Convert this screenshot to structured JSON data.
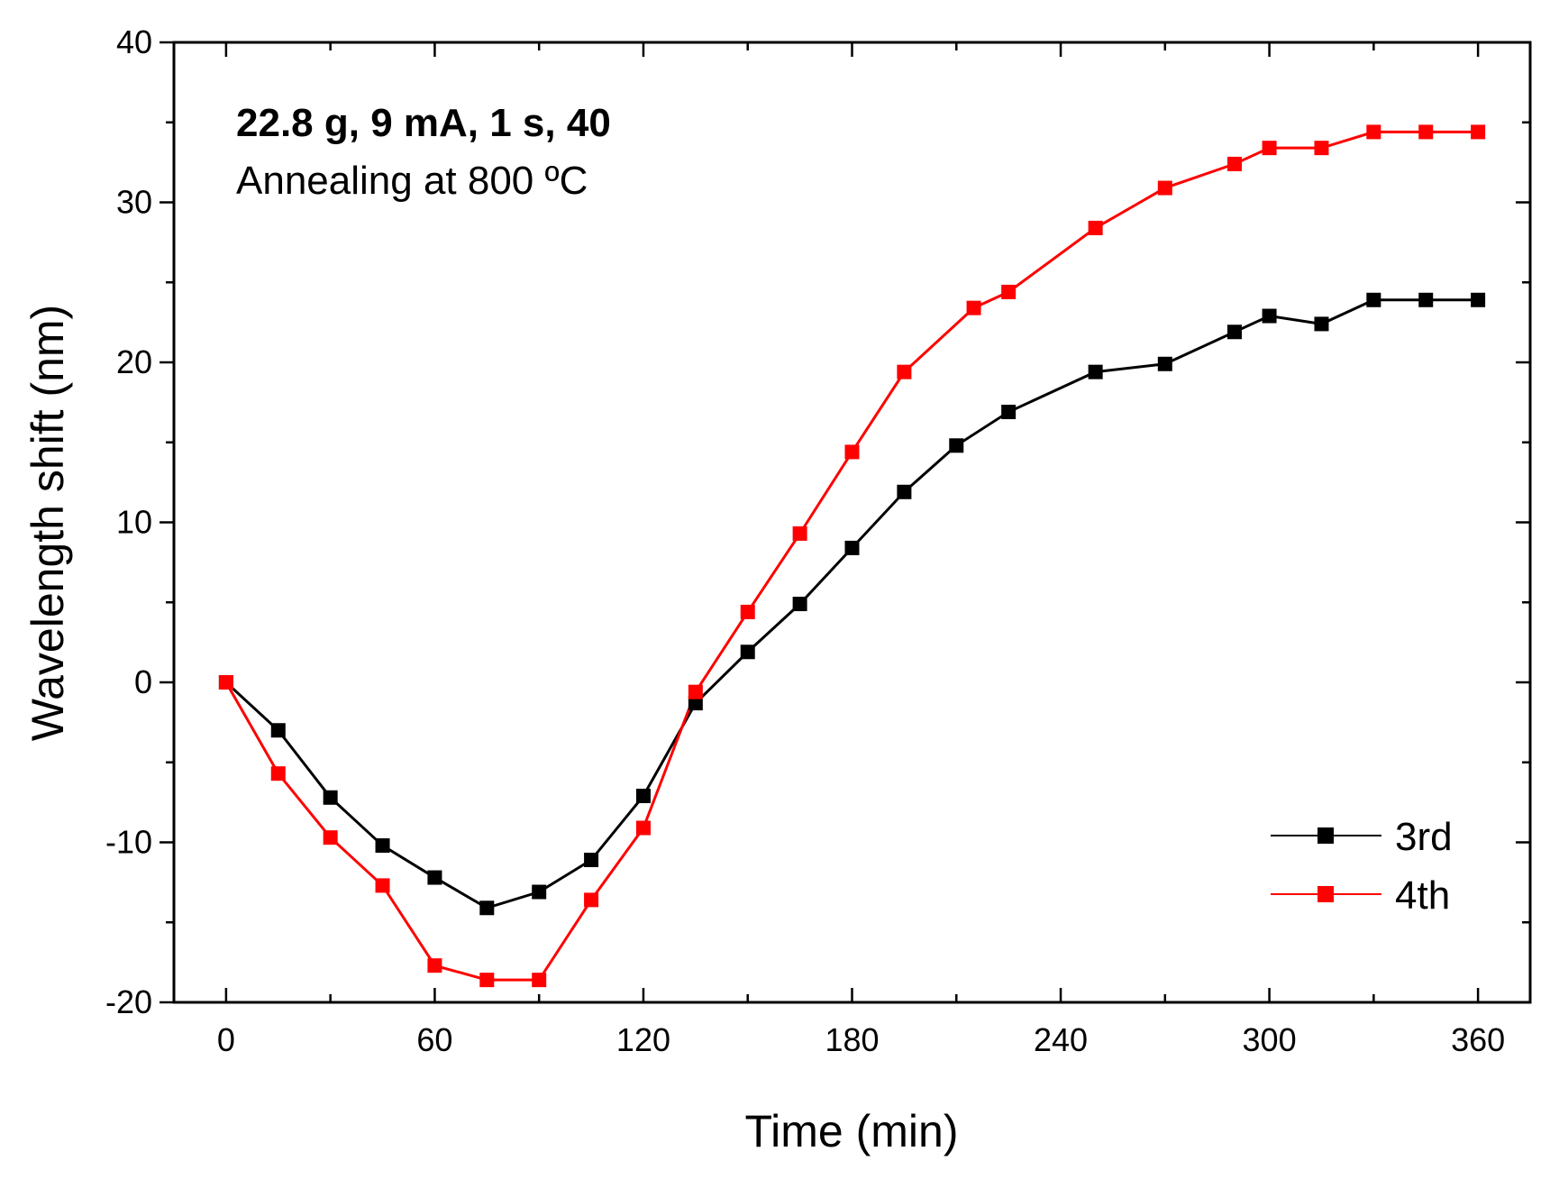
{
  "chart_data": {
    "type": "line",
    "title": "",
    "xlabel": "Time (min)",
    "ylabel": "Wavelength shift (nm)",
    "xlim": [
      -15,
      375
    ],
    "ylim": [
      -20,
      40
    ],
    "xticks": [
      0,
      60,
      120,
      180,
      240,
      300,
      360
    ],
    "xtick_labels": [
      "0",
      "60",
      "120",
      "180",
      "240",
      "300",
      "360"
    ],
    "yticks": [
      -20,
      -10,
      0,
      10,
      20,
      30,
      40
    ],
    "ytick_labels": [
      "-20",
      "-10",
      "0",
      "10",
      "20",
      "30",
      "40"
    ],
    "grid": false,
    "legend_position": "bottom-right",
    "annotations": [
      "22.8 g, 9 mA, 1 s, 40",
      "Annealing at 800 ºC"
    ],
    "series": [
      {
        "name": "3rd",
        "color": "#000000",
        "x": [
          0,
          15,
          30,
          45,
          60,
          75,
          90,
          105,
          120,
          135,
          150,
          165,
          180,
          195,
          210,
          225,
          250,
          270,
          290,
          300,
          315,
          330,
          345,
          360
        ],
        "values": [
          0,
          -3,
          -7.2,
          -10.2,
          -12.2,
          -14.1,
          -13.1,
          -11.1,
          -7.1,
          -1.3,
          1.9,
          4.9,
          8.4,
          11.9,
          14.8,
          16.9,
          19.4,
          19.9,
          21.9,
          22.9,
          22.4,
          23.9,
          23.9,
          23.9
        ]
      },
      {
        "name": "4th",
        "color": "#ff0000",
        "x": [
          0,
          15,
          30,
          45,
          60,
          75,
          90,
          105,
          120,
          135,
          150,
          165,
          180,
          195,
          215,
          225,
          250,
          270,
          290,
          300,
          315,
          330,
          345,
          360
        ],
        "values": [
          0,
          -5.7,
          -9.7,
          -12.7,
          -17.7,
          -18.6,
          -18.6,
          -13.6,
          -9.1,
          -0.6,
          4.4,
          9.3,
          14.4,
          19.4,
          23.4,
          24.4,
          28.4,
          30.9,
          32.4,
          33.4,
          33.4,
          34.4,
          34.4,
          34.4
        ]
      }
    ]
  }
}
